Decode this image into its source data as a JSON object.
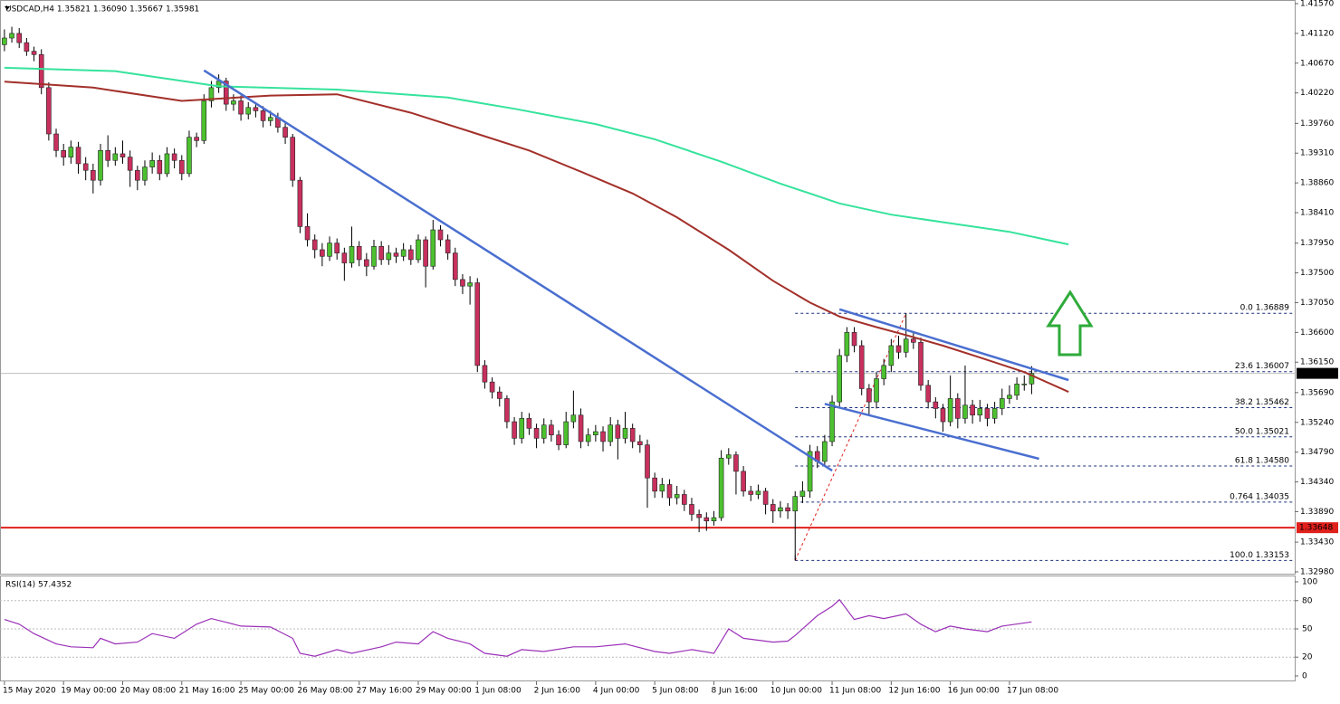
{
  "chart_data": {
    "type": "candlestick",
    "header": "USDCAD,H4 1.35821 1.36090 1.35667 1.35981",
    "bull_color": "#4cc12f",
    "bear_color": "#c8305e",
    "xlim": [
      -0.6,
      174.6
    ],
    "ylim": [
      1.3298,
      1.4157
    ],
    "yticks": [
      {
        "value": 1.4157,
        "label": "1.41570"
      },
      {
        "value": 1.4112,
        "label": "1.41120"
      },
      {
        "value": 1.4067,
        "label": "1.40670"
      },
      {
        "value": 1.4022,
        "label": "1.40220"
      },
      {
        "value": 1.3976,
        "label": "1.39760"
      },
      {
        "value": 1.3931,
        "label": "1.39310"
      },
      {
        "value": 1.3886,
        "label": "1.38860"
      },
      {
        "value": 1.3841,
        "label": "1.38410"
      },
      {
        "value": 1.3795,
        "label": "1.37950"
      },
      {
        "value": 1.375,
        "label": "1.37500"
      },
      {
        "value": 1.3705,
        "label": "1.37050"
      },
      {
        "value": 1.366,
        "label": "1.36600"
      },
      {
        "value": 1.3615,
        "label": "1.36150"
      },
      {
        "value": 1.3569,
        "label": "1.35690"
      },
      {
        "value": 1.3524,
        "label": "1.35240"
      },
      {
        "value": 1.3479,
        "label": "1.34790"
      },
      {
        "value": 1.3434,
        "label": "1.34340"
      },
      {
        "value": 1.3389,
        "label": "1.33890"
      },
      {
        "value": 1.3343,
        "label": "1.33430"
      },
      {
        "value": 1.3298,
        "label": "1.32980"
      }
    ],
    "xticks": [
      {
        "value": 0,
        "label": "15 May 2020"
      },
      {
        "value": 8,
        "label": "19 May 00:00"
      },
      {
        "value": 16,
        "label": "20 May 08:00"
      },
      {
        "value": 24,
        "label": "21 May 16:00"
      },
      {
        "value": 32,
        "label": "25 May 00:00"
      },
      {
        "value": 40,
        "label": "26 May 08:00"
      },
      {
        "value": 48,
        "label": "27 May 16:00"
      },
      {
        "value": 56,
        "label": "29 May 00:00"
      },
      {
        "value": 64,
        "label": "1 Jun 08:00"
      },
      {
        "value": 72,
        "label": "2 Jun 16:00"
      },
      {
        "value": 80,
        "label": "4 Jun 00:00"
      },
      {
        "value": 88,
        "label": "5 Jun 08:00"
      },
      {
        "value": 96,
        "label": "8 Jun 16:00"
      },
      {
        "value": 104,
        "label": "10 Jun 00:00"
      },
      {
        "value": 112,
        "label": "11 Jun 08:00"
      },
      {
        "value": 120,
        "label": "12 Jun 16:00"
      },
      {
        "value": 128,
        "label": "16 Jun 00:00"
      },
      {
        "value": 136,
        "label": "17 Jun 08:00"
      }
    ],
    "ohlc": [
      [
        1.4095,
        1.4118,
        1.4085,
        1.4105
      ],
      [
        1.4105,
        1.4122,
        1.4098,
        1.4112
      ],
      [
        1.4112,
        1.412,
        1.409,
        1.4098
      ],
      [
        1.4098,
        1.4105,
        1.4078,
        1.4085
      ],
      [
        1.4085,
        1.4092,
        1.407,
        1.408
      ],
      [
        1.408,
        1.4088,
        1.402,
        1.403
      ],
      [
        1.403,
        1.4038,
        1.395,
        1.396
      ],
      [
        1.396,
        1.3968,
        1.3925,
        1.3935
      ],
      [
        1.3935,
        1.3945,
        1.3912,
        1.3925
      ],
      [
        1.3925,
        1.395,
        1.3915,
        1.394
      ],
      [
        1.394,
        1.3948,
        1.39,
        1.3915
      ],
      [
        1.3915,
        1.3925,
        1.389,
        1.3905
      ],
      [
        1.3905,
        1.3915,
        1.387,
        1.389
      ],
      [
        1.389,
        1.3945,
        1.3882,
        1.3935
      ],
      [
        1.3935,
        1.3958,
        1.391,
        1.392
      ],
      [
        1.392,
        1.394,
        1.3912,
        1.393
      ],
      [
        1.393,
        1.395,
        1.3915,
        1.3925
      ],
      [
        1.3925,
        1.3935,
        1.388,
        1.3905
      ],
      [
        1.3905,
        1.3912,
        1.3875,
        1.389
      ],
      [
        1.389,
        1.392,
        1.3882,
        1.391
      ],
      [
        1.391,
        1.3932,
        1.39,
        1.392
      ],
      [
        1.392,
        1.3928,
        1.389,
        1.39
      ],
      [
        1.39,
        1.394,
        1.3895,
        1.393
      ],
      [
        1.393,
        1.3938,
        1.3908,
        1.392
      ],
      [
        1.392,
        1.3928,
        1.389,
        1.39
      ],
      [
        1.39,
        1.3965,
        1.3895,
        1.3955
      ],
      [
        1.3955,
        1.3962,
        1.394,
        1.395
      ],
      [
        1.395,
        1.402,
        1.3945,
        1.401
      ],
      [
        1.401,
        1.404,
        1.4,
        1.403
      ],
      [
        1.403,
        1.405,
        1.4022,
        1.404
      ],
      [
        1.404,
        1.4045,
        1.3995,
        1.4005
      ],
      [
        1.4005,
        1.402,
        1.3995,
        1.401
      ],
      [
        1.401,
        1.4018,
        1.398,
        1.399
      ],
      [
        1.399,
        1.4008,
        1.3982,
        1.4
      ],
      [
        1.4,
        1.4008,
        1.3985,
        1.3995
      ],
      [
        1.3995,
        1.4002,
        1.397,
        1.398
      ],
      [
        1.398,
        1.3995,
        1.3972,
        1.3985
      ],
      [
        1.3985,
        1.3992,
        1.3962,
        1.397
      ],
      [
        1.397,
        1.3978,
        1.3945,
        1.3955
      ],
      [
        1.3955,
        1.396,
        1.388,
        1.389
      ],
      [
        1.389,
        1.3895,
        1.381,
        1.382
      ],
      [
        1.382,
        1.384,
        1.379,
        1.38
      ],
      [
        1.38,
        1.3808,
        1.3772,
        1.3785
      ],
      [
        1.3785,
        1.3795,
        1.376,
        1.3775
      ],
      [
        1.3775,
        1.3805,
        1.3768,
        1.3795
      ],
      [
        1.3795,
        1.3802,
        1.377,
        1.378
      ],
      [
        1.378,
        1.3788,
        1.3738,
        1.3765
      ],
      [
        1.3765,
        1.382,
        1.3758,
        1.379
      ],
      [
        1.379,
        1.3798,
        1.376,
        1.377
      ],
      [
        1.377,
        1.378,
        1.3745,
        1.376
      ],
      [
        1.376,
        1.38,
        1.3755,
        1.379
      ],
      [
        1.379,
        1.3798,
        1.3762,
        1.377
      ],
      [
        1.377,
        1.3792,
        1.3762,
        1.378
      ],
      [
        1.378,
        1.3788,
        1.3765,
        1.3775
      ],
      [
        1.3775,
        1.3795,
        1.3768,
        1.3785
      ],
      [
        1.3785,
        1.3792,
        1.3762,
        1.377
      ],
      [
        1.377,
        1.3808,
        1.3765,
        1.38
      ],
      [
        1.38,
        1.3805,
        1.3728,
        1.376
      ],
      [
        1.376,
        1.383,
        1.3755,
        1.3815
      ],
      [
        1.3815,
        1.3822,
        1.379,
        1.38
      ],
      [
        1.38,
        1.3808,
        1.377,
        1.378
      ],
      [
        1.378,
        1.3788,
        1.373,
        1.374
      ],
      [
        1.374,
        1.3748,
        1.3718,
        1.373
      ],
      [
        1.373,
        1.3745,
        1.3702,
        1.3735
      ],
      [
        1.3735,
        1.3742,
        1.36,
        1.361
      ],
      [
        1.361,
        1.3618,
        1.3575,
        1.3585
      ],
      [
        1.3585,
        1.3592,
        1.356,
        1.357
      ],
      [
        1.357,
        1.3578,
        1.3548,
        1.356
      ],
      [
        1.356,
        1.3565,
        1.3515,
        1.3525
      ],
      [
        1.3525,
        1.3532,
        1.349,
        1.35
      ],
      [
        1.35,
        1.354,
        1.3492,
        1.353
      ],
      [
        1.353,
        1.3538,
        1.3505,
        1.3515
      ],
      [
        1.3515,
        1.3522,
        1.3485,
        1.35
      ],
      [
        1.35,
        1.353,
        1.3492,
        1.352
      ],
      [
        1.352,
        1.3528,
        1.3495,
        1.3505
      ],
      [
        1.3505,
        1.3512,
        1.3482,
        1.349
      ],
      [
        1.349,
        1.354,
        1.3485,
        1.3525
      ],
      [
        1.3525,
        1.3572,
        1.3515,
        1.3535
      ],
      [
        1.3535,
        1.3545,
        1.3485,
        1.3495
      ],
      [
        1.3495,
        1.3515,
        1.3488,
        1.3505
      ],
      [
        1.3505,
        1.352,
        1.3495,
        1.351
      ],
      [
        1.351,
        1.3518,
        1.348,
        1.3495
      ],
      [
        1.3495,
        1.3532,
        1.3488,
        1.352
      ],
      [
        1.352,
        1.3528,
        1.3468,
        1.35
      ],
      [
        1.35,
        1.354,
        1.3492,
        1.3515
      ],
      [
        1.3515,
        1.3522,
        1.3485,
        1.3495
      ],
      [
        1.3495,
        1.3505,
        1.3478,
        1.349
      ],
      [
        1.349,
        1.3498,
        1.3395,
        1.344
      ],
      [
        1.344,
        1.3448,
        1.341,
        1.342
      ],
      [
        1.342,
        1.344,
        1.341,
        1.343
      ],
      [
        1.343,
        1.3438,
        1.3398,
        1.341
      ],
      [
        1.341,
        1.3428,
        1.34,
        1.3415
      ],
      [
        1.3415,
        1.3422,
        1.339,
        1.34
      ],
      [
        1.34,
        1.341,
        1.3375,
        1.3385
      ],
      [
        1.3385,
        1.3392,
        1.3358,
        1.338
      ],
      [
        1.338,
        1.3388,
        1.336,
        1.3375
      ],
      [
        1.3375,
        1.339,
        1.3368,
        1.338
      ],
      [
        1.338,
        1.3482,
        1.3375,
        1.347
      ],
      [
        1.347,
        1.3485,
        1.346,
        1.3475
      ],
      [
        1.3475,
        1.348,
        1.3415,
        1.345
      ],
      [
        1.345,
        1.3458,
        1.3412,
        1.342
      ],
      [
        1.342,
        1.3428,
        1.3405,
        1.3415
      ],
      [
        1.3415,
        1.343,
        1.3408,
        1.342
      ],
      [
        1.342,
        1.3425,
        1.3385,
        1.34
      ],
      [
        1.34,
        1.3408,
        1.3372,
        1.339
      ],
      [
        1.339,
        1.3405,
        1.338,
        1.3395
      ],
      [
        1.3395,
        1.3402,
        1.3378,
        1.339
      ],
      [
        1.339,
        1.342,
        1.33153,
        1.3412
      ],
      [
        1.3412,
        1.3435,
        1.3402,
        1.342
      ],
      [
        1.342,
        1.349,
        1.341,
        1.348
      ],
      [
        1.348,
        1.3488,
        1.3455,
        1.3465
      ],
      [
        1.3465,
        1.3505,
        1.3458,
        1.3495
      ],
      [
        1.3495,
        1.3565,
        1.3488,
        1.3555
      ],
      [
        1.3555,
        1.3635,
        1.3548,
        1.3625
      ],
      [
        1.3625,
        1.3668,
        1.3615,
        1.366
      ],
      [
        1.366,
        1.3668,
        1.363,
        1.364
      ],
      [
        1.364,
        1.3648,
        1.3565,
        1.3575
      ],
      [
        1.3575,
        1.3582,
        1.3535,
        1.3555
      ],
      [
        1.3555,
        1.36,
        1.3545,
        1.359
      ],
      [
        1.359,
        1.362,
        1.358,
        1.361
      ],
      [
        1.361,
        1.365,
        1.36,
        1.364
      ],
      [
        1.364,
        1.3655,
        1.362,
        1.363
      ],
      [
        1.363,
        1.36889,
        1.3622,
        1.365
      ],
      [
        1.365,
        1.3662,
        1.3635,
        1.3645
      ],
      [
        1.3645,
        1.3652,
        1.3572,
        1.358
      ],
      [
        1.358,
        1.3588,
        1.3545,
        1.3555
      ],
      [
        1.3555,
        1.3562,
        1.353,
        1.3545
      ],
      [
        1.3545,
        1.3552,
        1.351,
        1.3525
      ],
      [
        1.3525,
        1.3595,
        1.3518,
        1.356
      ],
      [
        1.356,
        1.3568,
        1.3515,
        1.353
      ],
      [
        1.353,
        1.361,
        1.3522,
        1.355
      ],
      [
        1.355,
        1.3558,
        1.3522,
        1.3535
      ],
      [
        1.3535,
        1.3558,
        1.3525,
        1.3545
      ],
      [
        1.3545,
        1.3552,
        1.3518,
        1.353
      ],
      [
        1.353,
        1.3555,
        1.3522,
        1.3545
      ],
      [
        1.3545,
        1.3575,
        1.3535,
        1.356
      ],
      [
        1.356,
        1.358,
        1.3552,
        1.3565
      ],
      [
        1.3565,
        1.3592,
        1.3558,
        1.3582
      ],
      [
        1.3582,
        1.3595,
        1.3572,
        1.35821
      ],
      [
        1.35821,
        1.3609,
        1.35667,
        1.35981
      ]
    ],
    "moving_averages": [
      {
        "color": "#35e39c",
        "x": [
          0,
          15,
          29,
          45,
          60,
          69,
          80,
          88,
          97,
          105,
          113,
          120,
          128,
          136,
          144
        ],
        "values": [
          1.406,
          1.4055,
          1.4032,
          1.4027,
          1.4015,
          1.3998,
          1.3975,
          1.3952,
          1.3918,
          1.3885,
          1.3855,
          1.3838,
          1.3825,
          1.3812,
          1.3793
        ]
      },
      {
        "color": "#a3302a",
        "x": [
          0,
          12,
          24,
          36,
          45,
          55,
          64,
          71,
          78,
          85,
          91,
          98,
          104,
          109,
          113,
          118,
          122,
          127,
          132,
          138,
          144
        ],
        "values": [
          1.4039,
          1.403,
          1.401,
          1.4018,
          1.402,
          1.3992,
          1.396,
          1.3935,
          1.3903,
          1.387,
          1.3834,
          1.3785,
          1.3738,
          1.3705,
          1.3684,
          1.3668,
          1.3656,
          1.364,
          1.3622,
          1.36,
          1.357
        ]
      }
    ],
    "trendline_color": "#4a6fd0",
    "trendlines": [
      {
        "x": [
          27,
          112
        ],
        "values": [
          1.4056,
          1.3451
        ]
      },
      {
        "x": [
          113,
          144
        ],
        "values": [
          1.3695,
          1.3588
        ]
      },
      {
        "x": [
          111,
          140
        ],
        "values": [
          1.3552,
          1.3469
        ]
      }
    ],
    "fib_line": {
      "x": [
        107,
        122
      ],
      "values": [
        1.33153,
        1.36889
      ],
      "color": "#e0201b"
    },
    "fib_levels": {
      "start": 107,
      "color": "#1a2f7a",
      "levels": [
        {
          "value": 1.36889,
          "label": "0.0 1.36889"
        },
        {
          "value": 1.36007,
          "label": "23.6 1.36007"
        },
        {
          "value": 1.35462,
          "label": "38.2 1.35462"
        },
        {
          "value": 1.35021,
          "label": "50.0 1.35021"
        },
        {
          "value": 1.3458,
          "label": "61.8 1.34580"
        },
        {
          "value": 1.34035,
          "label": "0.764 1.34035"
        },
        {
          "value": 1.33153,
          "label": "100.0 1.33153"
        }
      ]
    },
    "support": {
      "value": 1.33648,
      "label": "1.33648",
      "color": "#e0201b"
    },
    "last_price": {
      "value": 1.35981,
      "label": "1.35981"
    },
    "rsi": {
      "title": "RSI(14) 57.4352",
      "color": "#9b30b8",
      "ylim": [
        0,
        100
      ],
      "yticks": [
        100,
        80,
        50,
        20,
        0
      ],
      "levels": [
        80,
        50,
        20
      ],
      "x": [
        0,
        2,
        4,
        7,
        9,
        12,
        13,
        15,
        18,
        20,
        23,
        26,
        28,
        30,
        32,
        36,
        39,
        40,
        42,
        45,
        47,
        51,
        53,
        56,
        58,
        60,
        63,
        65,
        68,
        70,
        73,
        77,
        80,
        84,
        88,
        90,
        93,
        96,
        98,
        100,
        104,
        106,
        107,
        110,
        112,
        113,
        115,
        117,
        119,
        122,
        124,
        126,
        128,
        130,
        133,
        135,
        139
      ],
      "values": [
        60,
        55,
        45,
        34,
        31,
        30,
        40,
        34,
        36,
        45,
        40,
        55,
        61,
        57,
        53,
        52,
        40,
        24,
        21,
        28,
        24,
        31,
        36,
        34,
        47,
        40,
        34,
        24,
        21,
        28,
        26,
        31,
        31,
        34,
        26,
        24,
        28,
        24,
        50,
        40,
        36,
        37,
        43,
        64,
        74,
        81,
        60,
        64,
        61,
        66,
        55,
        47,
        53,
        50,
        47,
        53,
        57.4352
      ]
    }
  }
}
